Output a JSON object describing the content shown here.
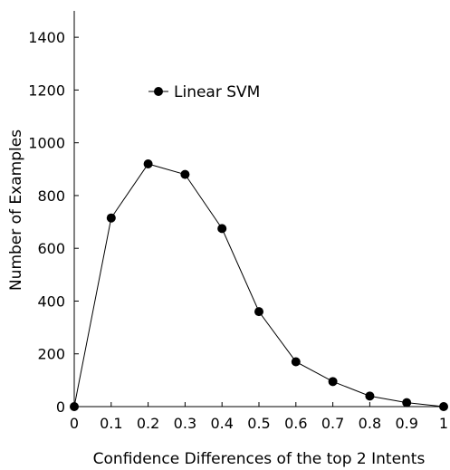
{
  "chart_data": {
    "type": "line",
    "xlabel": "Confidence Differences of the top 2 Intents",
    "ylabel": "Number of Examples",
    "xlim": [
      0,
      1
    ],
    "ylim": [
      0,
      1500
    ],
    "x_ticks": [
      0,
      0.1,
      0.2,
      0.3,
      0.4,
      0.5,
      0.6,
      0.7,
      0.8,
      0.9,
      1
    ],
    "x_tick_labels": [
      "0",
      "0.1",
      "0.2",
      "0.3",
      "0.4",
      "0.5",
      "0.6",
      "0.7",
      "0.8",
      "0.9",
      "1"
    ],
    "y_ticks": [
      0,
      200,
      400,
      600,
      800,
      1000,
      1200,
      1400
    ],
    "y_tick_labels": [
      "0",
      "200",
      "400",
      "600",
      "800",
      "1000",
      "1200",
      "1400"
    ],
    "grid": false,
    "legend_position": "top-left",
    "series": [
      {
        "name": "Linear SVM",
        "color": "#000000",
        "marker": "circle",
        "x": [
          0,
          0.1,
          0.2,
          0.3,
          0.4,
          0.5,
          0.6,
          0.7,
          0.8,
          0.9,
          1
        ],
        "y": [
          0,
          715,
          920,
          880,
          675,
          360,
          170,
          95,
          40,
          15,
          0
        ]
      }
    ]
  }
}
